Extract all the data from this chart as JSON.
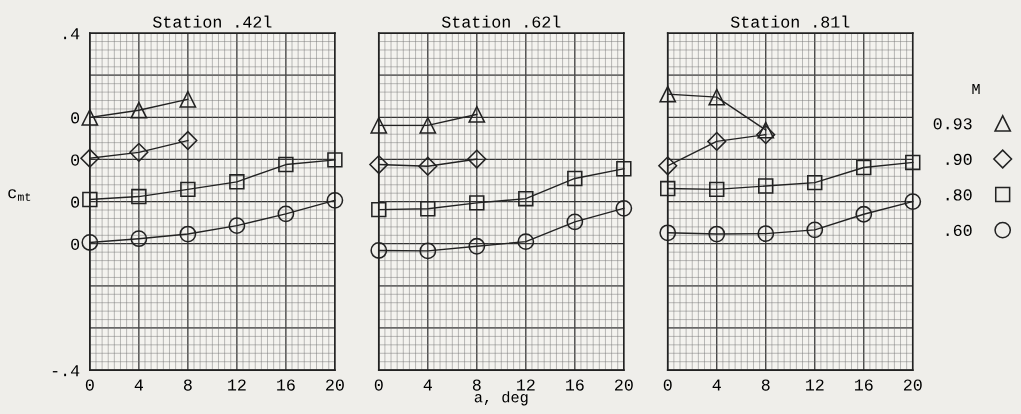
{
  "chart_data": [
    {
      "type": "line",
      "title": "Station .42l",
      "ylabel": "c$_{mt}$",
      "xlim": [
        0,
        20
      ],
      "xticks": [
        0,
        4,
        8,
        12,
        16,
        20
      ],
      "ylim": [
        -0.4,
        0.4
      ],
      "yticks": [
        {
          "value": -0.4,
          "label": "-.4"
        },
        {
          "value": -0.1,
          "label": "0"
        },
        {
          "value": 0,
          "label": "0"
        },
        {
          "value": 0.1,
          "label": "0"
        },
        {
          "value": 0.2,
          "label": "0"
        },
        {
          "value": 0.4,
          "label": ".4"
        }
      ],
      "grid": true,
      "x": [
        0,
        4,
        8,
        12,
        16,
        20
      ],
      "series": [
        {
          "color": "#222222",
          "marker": "triangle",
          "values": [
            0.2,
            0.217,
            0.243,
            null,
            null,
            null
          ]
        },
        {
          "color": "#222222",
          "marker": "diamond",
          "values": [
            0.103,
            0.117,
            0.145,
            null,
            null,
            null
          ]
        },
        {
          "color": "#222222",
          "marker": "square",
          "values": [
            0.005,
            0.012,
            0.029,
            0.047,
            0.088,
            0.099
          ]
        },
        {
          "color": "#222222",
          "marker": "circle",
          "values": [
            -0.097,
            -0.088,
            -0.077,
            -0.057,
            -0.029,
            0.003
          ]
        }
      ]
    },
    {
      "type": "line",
      "title": "Station .62l",
      "xlabel": "a, deg",
      "xlim": [
        0,
        20
      ],
      "xticks": [
        0,
        4,
        8,
        12,
        16,
        20
      ],
      "ylim": [
        -0.4,
        0.4
      ],
      "yticks": [
        -0.4,
        -0.1,
        0,
        0.1,
        0.2,
        0.4
      ],
      "tick_labels": "x",
      "grid": true,
      "x": [
        0,
        4,
        8,
        12,
        16,
        20
      ],
      "series": [
        {
          "color": "#222222",
          "marker": "triangle",
          "values": [
            0.181,
            0.181,
            0.207,
            null,
            null,
            null
          ]
        },
        {
          "color": "#222222",
          "marker": "diamond",
          "values": [
            0.088,
            0.084,
            0.101,
            null,
            null,
            null
          ]
        },
        {
          "color": "#222222",
          "marker": "square",
          "values": [
            -0.019,
            -0.017,
            -0.003,
            0.007,
            0.055,
            0.078
          ]
        },
        {
          "color": "#222222",
          "marker": "circle",
          "values": [
            -0.116,
            -0.117,
            -0.106,
            -0.095,
            -0.048,
            -0.016
          ]
        }
      ]
    },
    {
      "type": "line",
      "title": "Station .81l",
      "xlim": [
        0,
        20
      ],
      "xticks": [
        0,
        4,
        8,
        12,
        16,
        20
      ],
      "ylim": [
        -0.4,
        0.4
      ],
      "yticks": [
        -0.4,
        -0.1,
        0,
        0.1,
        0.2,
        0.4
      ],
      "tick_labels": "x",
      "grid": true,
      "legend": "right",
      "legend_title": "M",
      "x": [
        0,
        4,
        8,
        12,
        16,
        20
      ],
      "series": [
        {
          "name": "0.93",
          "color": "#222222",
          "marker": "triangle",
          "values": [
            0.255,
            0.248,
            0.17,
            null,
            null,
            null
          ]
        },
        {
          "name": ".90",
          "color": "#222222",
          "marker": "diamond",
          "values": [
            0.085,
            0.143,
            0.159,
            null,
            null,
            null
          ]
        },
        {
          "name": ".80",
          "color": "#222222",
          "marker": "square",
          "values": [
            0.031,
            0.029,
            0.037,
            0.045,
            0.081,
            0.093
          ]
        },
        {
          "name": ".60",
          "color": "#222222",
          "marker": "circle",
          "values": [
            -0.074,
            -0.077,
            -0.076,
            -0.067,
            -0.03,
            0.0
          ]
        }
      ]
    }
  ]
}
